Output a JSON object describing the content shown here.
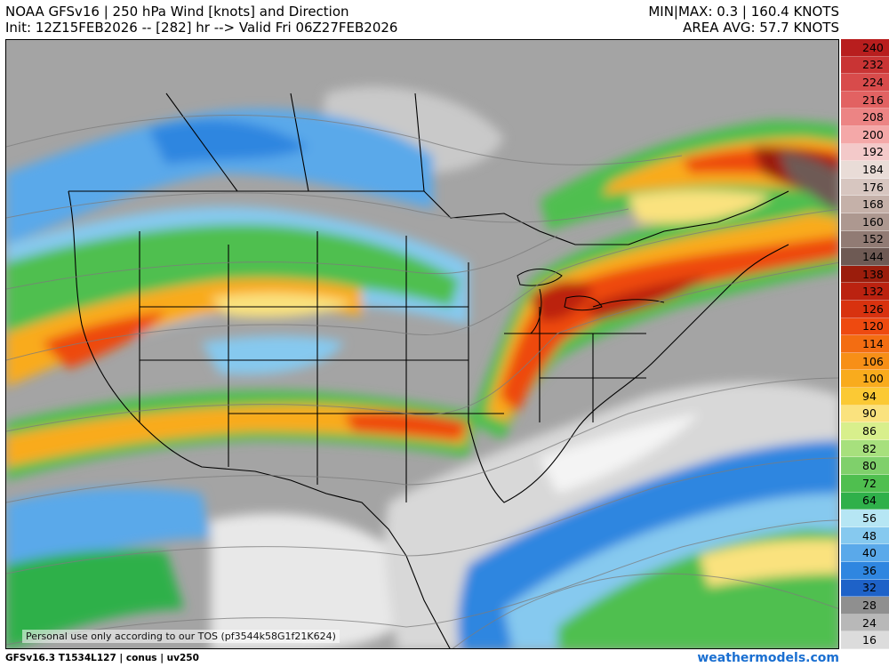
{
  "header": {
    "title": "NOAA GFSv16 | 250 hPa Wind [knots] and Direction",
    "init": "Init: 12Z15FEB2026 -- [282] hr --> Valid Fri 06Z27FEB2026",
    "minmax": "MIN|MAX: 0.3 | 160.4 KNOTS",
    "area_avg": "AREA AVG: 57.7 KNOTS"
  },
  "legend": {
    "levels": [
      {
        "value": "240",
        "color": "#b81e1e"
      },
      {
        "value": "232",
        "color": "#c93434"
      },
      {
        "value": "224",
        "color": "#d84b4b"
      },
      {
        "value": "216",
        "color": "#e26262"
      },
      {
        "value": "208",
        "color": "#ec8484"
      },
      {
        "value": "200",
        "color": "#f4a8a8"
      },
      {
        "value": "192",
        "color": "#f3c9c9"
      },
      {
        "value": "184",
        "color": "#e9dcd7"
      },
      {
        "value": "176",
        "color": "#d7c6c0"
      },
      {
        "value": "168",
        "color": "#c5b1a9"
      },
      {
        "value": "160",
        "color": "#ad9890"
      },
      {
        "value": "152",
        "color": "#917b74"
      },
      {
        "value": "144",
        "color": "#6e5a54"
      },
      {
        "value": "138",
        "color": "#9b1d0c"
      },
      {
        "value": "132",
        "color": "#bb2210"
      },
      {
        "value": "126",
        "color": "#d8320f"
      },
      {
        "value": "120",
        "color": "#ee4a10"
      },
      {
        "value": "114",
        "color": "#f36d12"
      },
      {
        "value": "106",
        "color": "#f78f17"
      },
      {
        "value": "100",
        "color": "#f9ab1d"
      },
      {
        "value": "94",
        "color": "#fbc934"
      },
      {
        "value": "90",
        "color": "#fae27e"
      },
      {
        "value": "86",
        "color": "#d8ef8c"
      },
      {
        "value": "82",
        "color": "#a7e07d"
      },
      {
        "value": "80",
        "color": "#7fd06b"
      },
      {
        "value": "72",
        "color": "#4fbf4f"
      },
      {
        "value": "64",
        "color": "#2fb04a"
      },
      {
        "value": "56",
        "color": "#b6e6f4"
      },
      {
        "value": "48",
        "color": "#86c9ef"
      },
      {
        "value": "40",
        "color": "#5aa9ea"
      },
      {
        "value": "36",
        "color": "#2f86e0"
      },
      {
        "value": "32",
        "color": "#1e62c8"
      },
      {
        "value": "28",
        "color": "#8f8f8f"
      },
      {
        "value": "24",
        "color": "#b8b8b8"
      },
      {
        "value": "16",
        "color": "#dcdcdc"
      }
    ]
  },
  "map": {
    "tos_note": "Personal use only according to our TOS (pf3544k58G1f21K624)"
  },
  "footer": {
    "model_info": "GFSv16.3 T1534L127 | conus | uv250",
    "site": "weathermodels.com"
  }
}
